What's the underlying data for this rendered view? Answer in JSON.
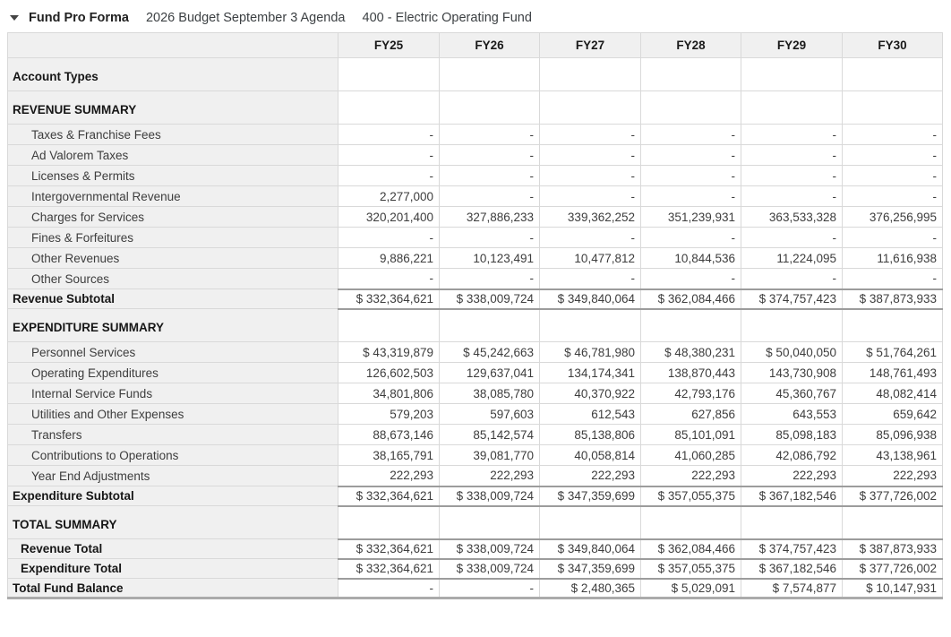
{
  "header": {
    "collapse_icon": "triangle-down",
    "title": "Fund Pro Forma",
    "subtitle": "2026 Budget September 3 Agenda",
    "fund": "400 - Electric Operating Fund"
  },
  "colors": {
    "header_bg": "#f0f0f0",
    "label_column_bg": "#f0f0f0",
    "gridline": "#d9d9d9",
    "subtotal_border": "#9c9c9c",
    "table_bottom_border": "#ababab",
    "text_regular": "#3d3d3d",
    "text_bold": "#161616"
  },
  "table": {
    "columns": [
      "FY25",
      "FY26",
      "FY27",
      "FY28",
      "FY29",
      "FY30"
    ],
    "rows": [
      {
        "label": "Account Types",
        "type": "section",
        "values": [
          "",
          "",
          "",
          "",
          "",
          ""
        ]
      },
      {
        "label": "REVENUE SUMMARY",
        "type": "section",
        "values": [
          "",
          "",
          "",
          "",
          "",
          ""
        ]
      },
      {
        "label": "Taxes & Franchise Fees",
        "type": "item",
        "values": [
          "-",
          "-",
          "-",
          "-",
          "-",
          "-"
        ]
      },
      {
        "label": "Ad Valorem Taxes",
        "type": "item",
        "values": [
          "-",
          "-",
          "-",
          "-",
          "-",
          "-"
        ]
      },
      {
        "label": "Licenses & Permits",
        "type": "item",
        "values": [
          "-",
          "-",
          "-",
          "-",
          "-",
          "-"
        ]
      },
      {
        "label": "Intergovernmental Revenue",
        "type": "item",
        "values": [
          "2,277,000",
          "-",
          "-",
          "-",
          "-",
          "-"
        ]
      },
      {
        "label": "Charges for Services",
        "type": "item",
        "values": [
          "320,201,400",
          "327,886,233",
          "339,362,252",
          "351,239,931",
          "363,533,328",
          "376,256,995"
        ]
      },
      {
        "label": "Fines & Forfeitures",
        "type": "item",
        "values": [
          "-",
          "-",
          "-",
          "-",
          "-",
          "-"
        ]
      },
      {
        "label": "Other Revenues",
        "type": "item",
        "values": [
          "9,886,221",
          "10,123,491",
          "10,477,812",
          "10,844,536",
          "11,224,095",
          "11,616,938"
        ]
      },
      {
        "label": "Other Sources",
        "type": "item",
        "values": [
          "-",
          "-",
          "-",
          "-",
          "-",
          "-"
        ]
      },
      {
        "label": "Revenue Subtotal",
        "type": "subtotal",
        "values": [
          "$ 332,364,621",
          "$ 338,009,724",
          "$ 349,840,064",
          "$ 362,084,466",
          "$ 374,757,423",
          "$ 387,873,933"
        ]
      },
      {
        "label": "EXPENDITURE SUMMARY",
        "type": "section",
        "values": [
          "",
          "",
          "",
          "",
          "",
          ""
        ]
      },
      {
        "label": "Personnel Services",
        "type": "item",
        "values": [
          "$ 43,319,879",
          "$ 45,242,663",
          "$ 46,781,980",
          "$ 48,380,231",
          "$ 50,040,050",
          "$ 51,764,261"
        ]
      },
      {
        "label": "Operating Expenditures",
        "type": "item",
        "values": [
          "126,602,503",
          "129,637,041",
          "134,174,341",
          "138,870,443",
          "143,730,908",
          "148,761,493"
        ]
      },
      {
        "label": "Internal Service Funds",
        "type": "item",
        "values": [
          "34,801,806",
          "38,085,780",
          "40,370,922",
          "42,793,176",
          "45,360,767",
          "48,082,414"
        ]
      },
      {
        "label": "Utilities and Other Expenses",
        "type": "item",
        "values": [
          "579,203",
          "597,603",
          "612,543",
          "627,856",
          "643,553",
          "659,642"
        ]
      },
      {
        "label": "Transfers",
        "type": "item",
        "values": [
          "88,673,146",
          "85,142,574",
          "85,138,806",
          "85,101,091",
          "85,098,183",
          "85,096,938"
        ]
      },
      {
        "label": "Contributions to Operations",
        "type": "item",
        "values": [
          "38,165,791",
          "39,081,770",
          "40,058,814",
          "41,060,285",
          "42,086,792",
          "43,138,961"
        ]
      },
      {
        "label": "Year End Adjustments",
        "type": "item",
        "values": [
          "222,293",
          "222,293",
          "222,293",
          "222,293",
          "222,293",
          "222,293"
        ]
      },
      {
        "label": "Expenditure Subtotal",
        "type": "subtotal",
        "values": [
          "$ 332,364,621",
          "$ 338,009,724",
          "$ 347,359,699",
          "$ 357,055,375",
          "$ 367,182,546",
          "$ 377,726,002"
        ]
      },
      {
        "label": "TOTAL SUMMARY",
        "type": "section",
        "values": [
          "",
          "",
          "",
          "",
          "",
          ""
        ]
      },
      {
        "label": "Revenue Total",
        "type": "total",
        "values": [
          "$ 332,364,621",
          "$ 338,009,724",
          "$ 349,840,064",
          "$ 362,084,466",
          "$ 374,757,423",
          "$ 387,873,933"
        ]
      },
      {
        "label": "Expenditure Total",
        "type": "total",
        "values": [
          "$ 332,364,621",
          "$ 338,009,724",
          "$ 347,359,699",
          "$ 357,055,375",
          "$ 367,182,546",
          "$ 377,726,002"
        ]
      },
      {
        "label": "Total Fund Balance",
        "type": "grand",
        "values": [
          "-",
          "-",
          "$ 2,480,365",
          "$ 5,029,091",
          "$ 7,574,877",
          "$ 10,147,931"
        ]
      }
    ]
  }
}
